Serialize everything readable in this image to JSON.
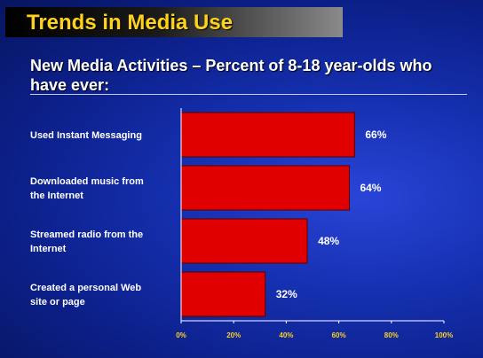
{
  "slide": {
    "title": "Trends in Media Use",
    "subtitle": "New Media Activities – Percent of 8-18 year-olds who have ever:"
  },
  "colors": {
    "bar_fill": "#e00000",
    "title_text": "#ffd21a",
    "tick_text": "#ffd21a",
    "label_text": "#ffffff"
  },
  "chart_data": {
    "type": "bar",
    "orientation": "horizontal",
    "categories": [
      [
        "Used Instant Messaging"
      ],
      [
        "Downloaded music from",
        "the Internet"
      ],
      [
        "Streamed radio from the",
        "Internet"
      ],
      [
        "Created a personal Web",
        "site or page"
      ]
    ],
    "values": [
      66,
      64,
      48,
      32
    ],
    "value_labels": [
      "66%",
      "64%",
      "48%",
      "32%"
    ],
    "x_ticks": [
      0,
      20,
      40,
      60,
      80,
      100
    ],
    "x_tick_labels": [
      "0%",
      "20%",
      "40%",
      "60%",
      "80%",
      "100%"
    ],
    "xlim": [
      0,
      100
    ],
    "grid": false,
    "legend": "none"
  }
}
